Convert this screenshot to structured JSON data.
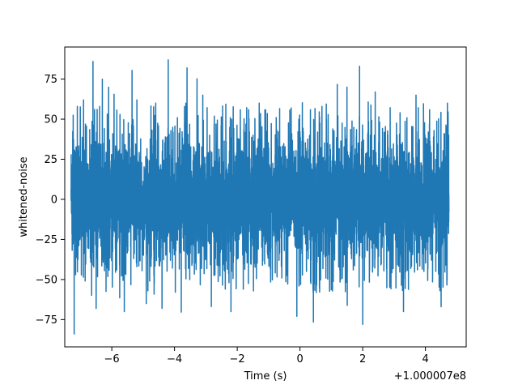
{
  "chart_data": {
    "type": "line",
    "title": "",
    "xlabel": "Time (s)",
    "ylabel": "whitened-noise",
    "x_offset_label": "+1.000007e8",
    "xlim": [
      -7.5,
      5.3
    ],
    "ylim": [
      -92,
      95
    ],
    "x_ticks": [
      -6,
      -4,
      -2,
      0,
      2,
      4
    ],
    "x_tick_labels": [
      "−6",
      "−4",
      "−2",
      "0",
      "2",
      "4"
    ],
    "y_ticks": [
      -75,
      -50,
      -25,
      0,
      25,
      50,
      75
    ],
    "y_tick_labels": [
      "−75",
      "−50",
      "−25",
      "0",
      "25",
      "50",
      "75"
    ],
    "grid": false,
    "series": [
      {
        "color": "#1f77b4",
        "x_start": -7.3,
        "x_end": 4.75,
        "typical_range": [
          -42,
          42
        ],
        "spikes": [
          {
            "x": -7.2,
            "y": -84
          },
          {
            "x": -7.1,
            "y": 58
          },
          {
            "x": -6.9,
            "y": 62
          },
          {
            "x": -6.6,
            "y": 86
          },
          {
            "x": -6.5,
            "y": -68
          },
          {
            "x": -6.3,
            "y": 75
          },
          {
            "x": -6.1,
            "y": 70
          },
          {
            "x": -5.6,
            "y": -70
          },
          {
            "x": -5.2,
            "y": 62
          },
          {
            "x": -4.9,
            "y": -65
          },
          {
            "x": -4.6,
            "y": 60
          },
          {
            "x": -4.4,
            "y": -68
          },
          {
            "x": -4.2,
            "y": 87
          },
          {
            "x": -3.6,
            "y": 82
          },
          {
            "x": -3.1,
            "y": 65
          },
          {
            "x": -2.2,
            "y": -70
          },
          {
            "x": -1.3,
            "y": 60
          },
          {
            "x": -0.1,
            "y": -73
          },
          {
            "x": 0.7,
            "y": 58
          },
          {
            "x": 1.5,
            "y": 70
          },
          {
            "x": 1.9,
            "y": 83
          },
          {
            "x": 2.0,
            "y": -78
          },
          {
            "x": 2.4,
            "y": 67
          },
          {
            "x": 3.3,
            "y": -70
          },
          {
            "x": 3.7,
            "y": 65
          },
          {
            "x": 4.5,
            "y": -67
          },
          {
            "x": 4.7,
            "y": 60
          }
        ]
      }
    ]
  }
}
